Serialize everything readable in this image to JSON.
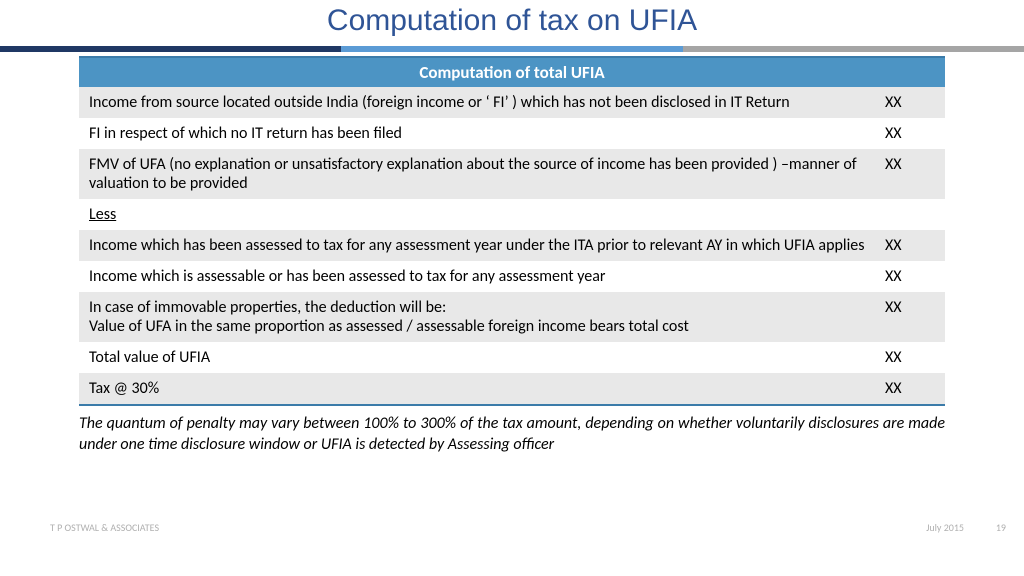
{
  "title": "Computation of tax on UFIA",
  "bar_colors": {
    "dark": "#1f3864",
    "mid": "#5b9bd5",
    "light": "#a5a5a5"
  },
  "table": {
    "header": "Computation of total UFIA",
    "header_bg": "#4c94c4",
    "header_fg": "#ffffff",
    "row_shade": "#e8e8e8",
    "row_plain": "#ffffff",
    "border_color": "#3b7ba9",
    "rows": [
      {
        "desc": "Income from source located outside India (foreign income or ‘ FI’ ) which has not been disclosed in IT Return",
        "val": "XX",
        "shade": true
      },
      {
        "desc": "FI in respect of which no IT return has been filed",
        "val": "XX",
        "shade": false
      },
      {
        "desc": "FMV of UFA (no explanation or unsatisfactory explanation about the source of income has been provided ) –manner of valuation to be provided",
        "val": "XX",
        "shade": true
      },
      {
        "desc": "Less",
        "val": "",
        "shade": false,
        "underline": true
      },
      {
        "desc": "Income which has been assessed to tax for any assessment year under the ITA prior to relevant AY in which UFIA applies",
        "val": "XX",
        "shade": true
      },
      {
        "desc": "Income which is assessable or has been assessed to tax for any assessment year",
        "val": "XX",
        "shade": false
      },
      {
        "desc": "In case of immovable properties, the deduction will be:\nValue of UFA in the same proportion as assessed / assessable foreign income bears total cost",
        "val": "XX",
        "shade": true
      },
      {
        "desc": "Total value of UFIA",
        "val": "XX",
        "shade": false
      },
      {
        "desc": "Tax @ 30%",
        "val": "XX",
        "shade": true
      }
    ]
  },
  "footnote": "The quantum of penalty may vary between 100% to 300% of the tax amount, depending on whether voluntarily disclosures are made under one time disclosure window or UFIA is detected by Assessing officer",
  "footer": {
    "left": "T P OSTWAL & ASSOCIATES",
    "date": "July 2015",
    "page": "19"
  }
}
